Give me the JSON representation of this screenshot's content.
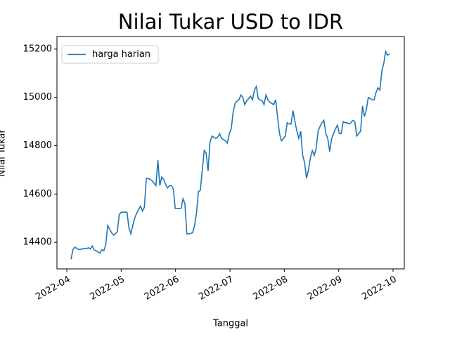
{
  "chart_data": {
    "type": "line",
    "title": "Nilai Tukar USD to IDR",
    "x_label": "Tanggal",
    "y_label": "Nilai Tukar",
    "xticks": [
      "2022-04",
      "2022-05",
      "2022-06",
      "2022-07",
      "2022-08",
      "2022-09",
      "2022-10"
    ],
    "ylim": [
      14290,
      15252
    ],
    "yticks": [
      14400,
      14600,
      14800,
      15000,
      15200
    ],
    "legend": "upper left",
    "series": [
      {
        "name": "harga harian",
        "color": "#1f77b4",
        "values": [
          14330,
          14370,
          14380,
          14375,
          14370,
          14372,
          14372,
          14375,
          14373,
          14378,
          14372,
          14385,
          14368,
          14365,
          14360,
          14355,
          14370,
          14365,
          14390,
          14470,
          14455,
          14440,
          14430,
          14435,
          14445,
          14515,
          14525,
          14525,
          14525,
          14525,
          14460,
          14435,
          14470,
          14500,
          14520,
          14535,
          14550,
          14530,
          14545,
          14665,
          14665,
          14660,
          14655,
          14645,
          14635,
          14740,
          14635,
          14670,
          14660,
          14640,
          14625,
          14635,
          14635,
          14620,
          14540,
          14540,
          14540,
          14540,
          14580,
          14560,
          14435,
          14435,
          14437,
          14440,
          14470,
          14520,
          14610,
          14615,
          14700,
          14780,
          14770,
          14695,
          14815,
          14840,
          14835,
          14830,
          14835,
          14850,
          14830,
          14825,
          14820,
          14810,
          14850,
          14870,
          14940,
          14975,
          14985,
          14990,
          15010,
          15000,
          14970,
          14985,
          14995,
          15005,
          14990,
          15030,
          15045,
          14995,
          14990,
          14985,
          14970,
          15010,
          14990,
          14980,
          14975,
          14970,
          14990,
          14920,
          14850,
          14820,
          14830,
          14840,
          14895,
          14890,
          14890,
          14945,
          14900,
          14860,
          14830,
          14860,
          14760,
          14730,
          14665,
          14700,
          14750,
          14780,
          14760,
          14790,
          14860,
          14880,
          14895,
          14905,
          14850,
          14830,
          14775,
          14830,
          14850,
          14870,
          14885,
          14850,
          14850,
          14900,
          14895,
          14895,
          14890,
          14895,
          14905,
          14900,
          14840,
          14850,
          14860,
          14965,
          14920,
          14950,
          15000,
          14995,
          14990,
          14990,
          15020,
          15040,
          15030,
          15110,
          15140,
          15190,
          15175,
          15180
        ]
      }
    ]
  }
}
